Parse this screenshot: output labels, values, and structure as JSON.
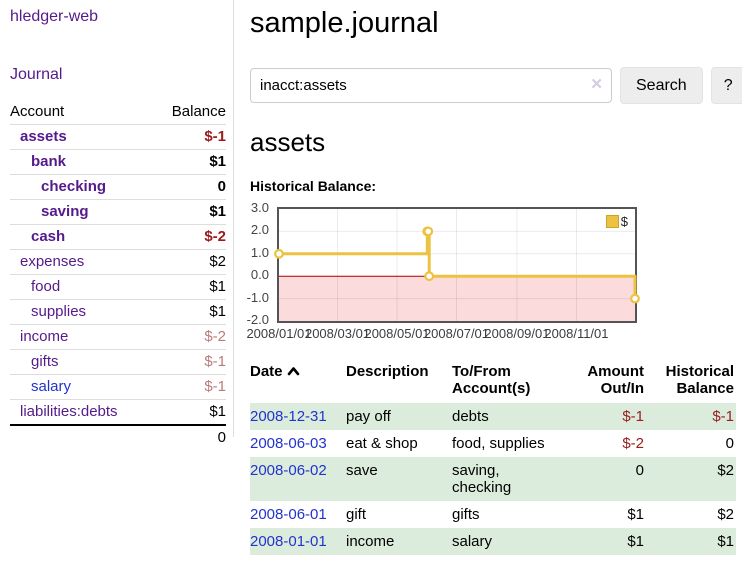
{
  "app": {
    "title": "hledger-web"
  },
  "sidebar": {
    "journal_link": "Journal",
    "table": {
      "header": {
        "account": "Account",
        "balance": "Balance"
      },
      "accounts": [
        {
          "name": "assets",
          "balance": "$-1"
        },
        {
          "name": "bank",
          "balance": "$1"
        },
        {
          "name": "checking",
          "balance": "0"
        },
        {
          "name": "saving",
          "balance": "$1"
        },
        {
          "name": "cash",
          "balance": "$-2"
        },
        {
          "name": "expenses",
          "balance": "$2"
        },
        {
          "name": "food",
          "balance": "$1"
        },
        {
          "name": "supplies",
          "balance": "$1"
        },
        {
          "name": "income",
          "balance": "$-2"
        },
        {
          "name": "gifts",
          "balance": "$-1"
        },
        {
          "name": "salary",
          "balance": "$-1"
        },
        {
          "name": "liabilities:debts",
          "balance": "$1"
        }
      ],
      "total": "0"
    }
  },
  "main": {
    "title": "sample.journal",
    "search": {
      "value": "inacct:assets",
      "clear_icon": "✕",
      "search_button": "Search",
      "help_button": "?"
    },
    "account_heading": "assets",
    "chart_label": "Historical Balance:"
  },
  "chart_data": {
    "type": "line",
    "step": true,
    "title": "Historical Balance",
    "series": [
      {
        "name": "$",
        "color": "#edc240",
        "points": [
          [
            "2008-01-01",
            1
          ],
          [
            "2008-06-01",
            2
          ],
          [
            "2008-06-02",
            2
          ],
          [
            "2008-06-03",
            0
          ],
          [
            "2008-12-31",
            -1
          ]
        ]
      }
    ],
    "ylim": [
      -2,
      3
    ],
    "xdomain": [
      "2008-01-01",
      "2008-12-31"
    ],
    "yticks": [
      {
        "label": "3.0",
        "value": 3
      },
      {
        "label": "2.0",
        "value": 2
      },
      {
        "label": "1.0",
        "value": 1
      },
      {
        "label": "0.0",
        "value": 0
      },
      {
        "label": "-1.0",
        "value": -1
      },
      {
        "label": "-2.0",
        "value": -2
      }
    ],
    "xticks": [
      {
        "label": "2008/01/01",
        "date": "2008-01-01"
      },
      {
        "label": "2008/03/01",
        "date": "2008-03-01"
      },
      {
        "label": "2008/05/01",
        "date": "2008-05-01"
      },
      {
        "label": "2008/07/01",
        "date": "2008-07-01"
      },
      {
        "label": "2008/09/01",
        "date": "2008-09-01"
      },
      {
        "label": "2008/11/01",
        "date": "2008-11-01"
      }
    ],
    "legend_position": "top-right",
    "grid": true,
    "colors": {
      "negative_fill": "#fbdbdb",
      "zero_line": "#aa0000",
      "grid": "rgba(0,0,0,0.08)",
      "border": "#545454"
    }
  },
  "register": {
    "headers": {
      "date": "Date",
      "description": "Description",
      "accounts": "To/From Account(s)",
      "amount": "Amount Out/In",
      "balance": "Historical Balance"
    },
    "rows": [
      {
        "date": "2008-12-31",
        "description": "pay off",
        "accounts": "debts",
        "amount": "$-1",
        "balance": "$-1"
      },
      {
        "date": "2008-06-03",
        "description": "eat & shop",
        "accounts": "food, supplies",
        "amount": "$-2",
        "balance": "0"
      },
      {
        "date": "2008-06-02",
        "description": "save",
        "accounts": "saving, checking",
        "amount": "0",
        "balance": "$2"
      },
      {
        "date": "2008-06-01",
        "description": "gift",
        "accounts": "gifts",
        "amount": "$1",
        "balance": "$2"
      },
      {
        "date": "2008-01-01",
        "description": "income",
        "accounts": "salary",
        "amount": "$1",
        "balance": "$1"
      }
    ]
  },
  "colors": {
    "link_purple": "#551a8b",
    "link_blue": "#2233cc",
    "negative_dark": "#9b1b1b",
    "negative_muted": "#b97c7c",
    "row_green": "#dcecdc",
    "series_gold": "#edc240"
  }
}
